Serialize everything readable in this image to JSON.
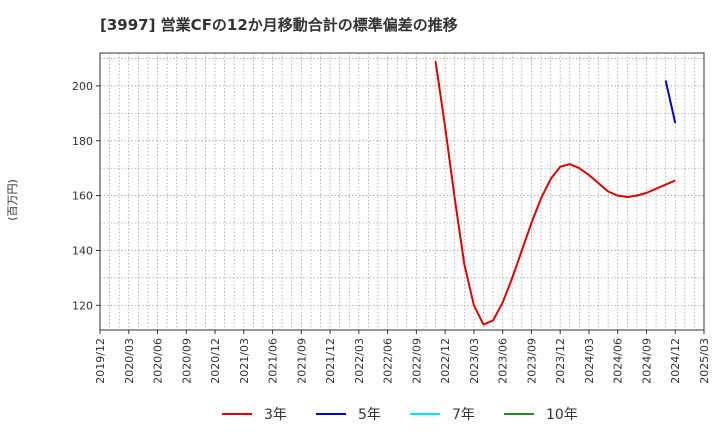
{
  "chart_data": {
    "type": "line",
    "title": "[3997]  営業CFの12か月移動合計の標準偏差の推移",
    "ylabel": "(百万円)",
    "xlabel": "",
    "ylim": [
      111,
      212
    ],
    "yticks": [
      120,
      140,
      160,
      180,
      200
    ],
    "x_range": [
      "2019-12",
      "2025-03"
    ],
    "x_ticks": [
      "2019/12",
      "2020/03",
      "2020/06",
      "2020/09",
      "2020/12",
      "2021/03",
      "2021/06",
      "2021/09",
      "2021/12",
      "2022/03",
      "2022/06",
      "2022/09",
      "2022/12",
      "2023/03",
      "2023/06",
      "2023/09",
      "2023/12",
      "2024/03",
      "2024/06",
      "2024/09",
      "2024/12",
      "2025/03"
    ],
    "grid": true,
    "series": [
      {
        "name": "3年",
        "color": "#dd0000",
        "points": [
          [
            "2022-11",
            209
          ],
          [
            "2022-12",
            185
          ],
          [
            "2023-01",
            159
          ],
          [
            "2023-02",
            135
          ],
          [
            "2023-03",
            120
          ],
          [
            "2023-04",
            113
          ],
          [
            "2023-05",
            114.5
          ],
          [
            "2023-06",
            121
          ],
          [
            "2023-07",
            130
          ],
          [
            "2023-08",
            140
          ],
          [
            "2023-09",
            150
          ],
          [
            "2023-10",
            159
          ],
          [
            "2023-11",
            166
          ],
          [
            "2023-12",
            170.5
          ],
          [
            "2024-01",
            171.5
          ],
          [
            "2024-02",
            170
          ],
          [
            "2024-03",
            167.5
          ],
          [
            "2024-04",
            164.5
          ],
          [
            "2024-05",
            161.5
          ],
          [
            "2024-06",
            160
          ],
          [
            "2024-07",
            159.5
          ],
          [
            "2024-08",
            160
          ],
          [
            "2024-09",
            161
          ],
          [
            "2024-10",
            162.5
          ],
          [
            "2024-11",
            164
          ],
          [
            "2024-12",
            165.5
          ]
        ]
      },
      {
        "name": "5年",
        "color": "#0000cc",
        "points": [
          [
            "2024-11",
            202
          ],
          [
            "2024-12",
            186.5
          ]
        ]
      },
      {
        "name": "7年",
        "color": "#00e5ee",
        "points": []
      },
      {
        "name": "10年",
        "color": "#228b22",
        "points": []
      }
    ]
  }
}
